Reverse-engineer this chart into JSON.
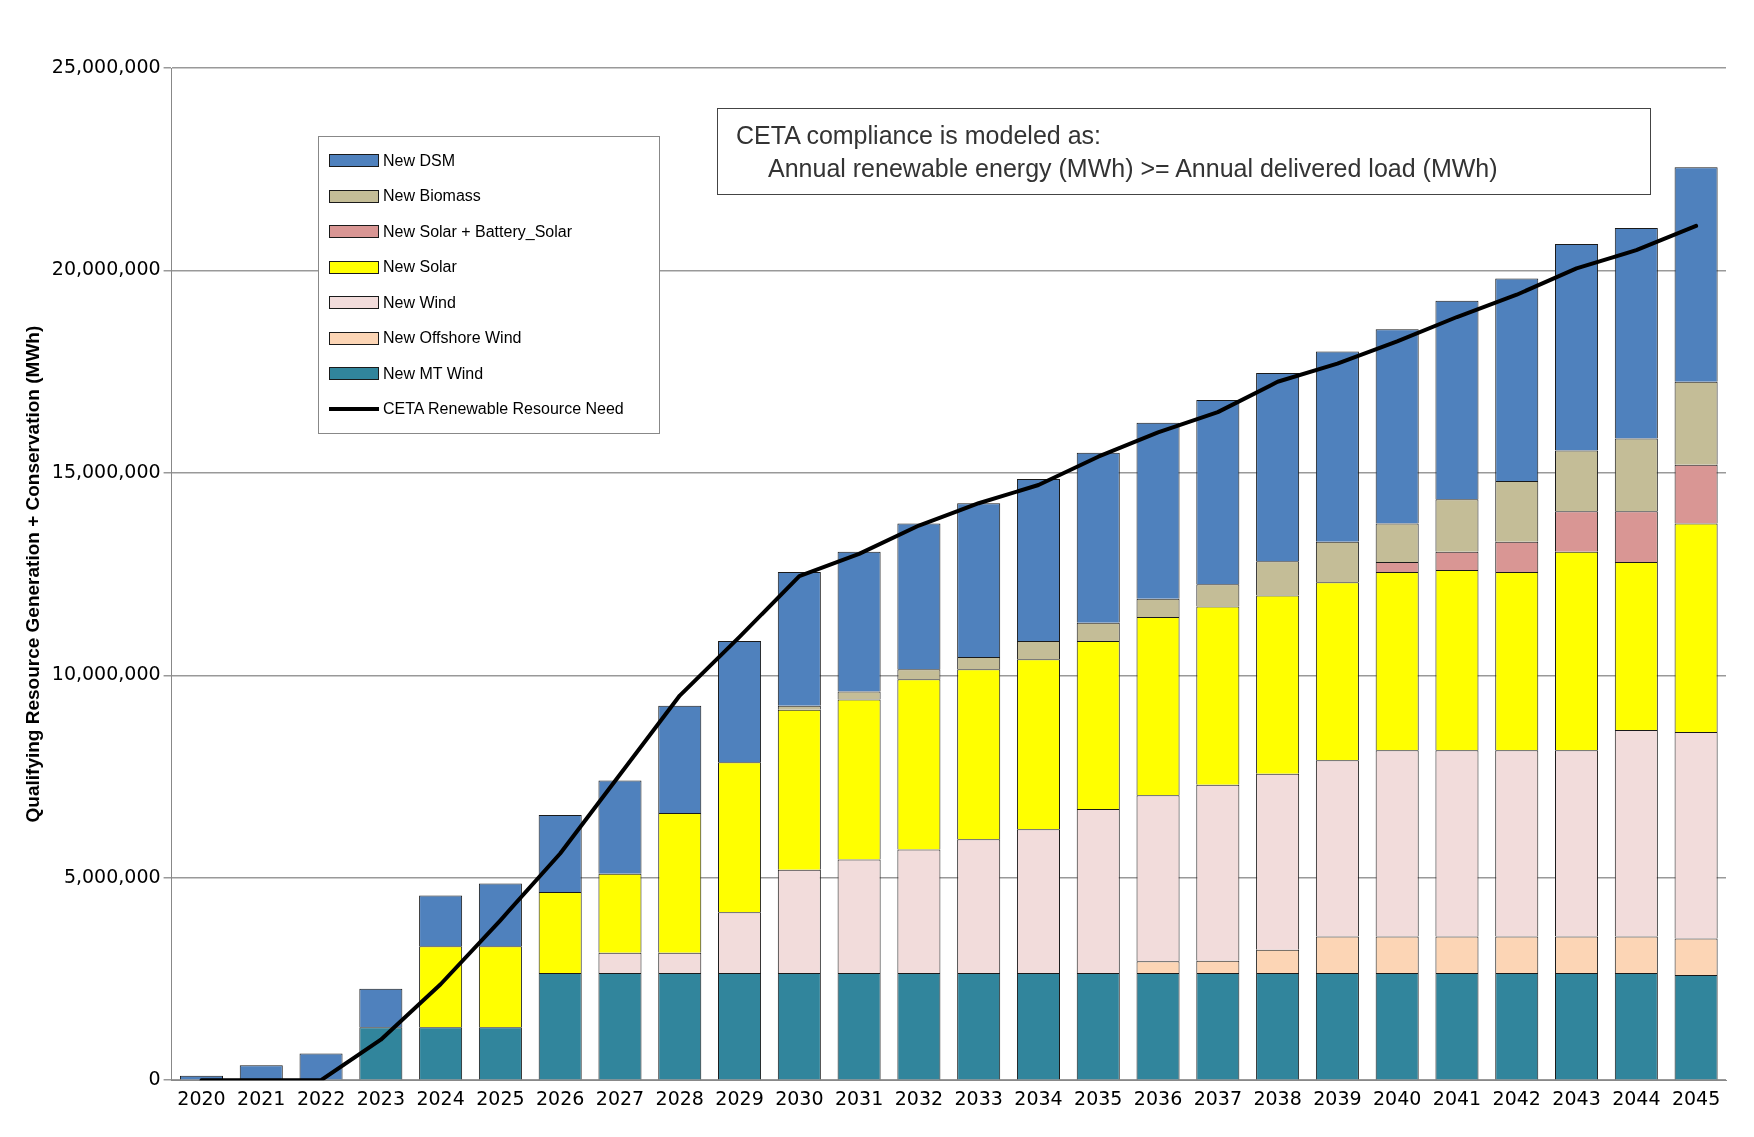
{
  "chart_data": {
    "type": "bar",
    "stacked": true,
    "ylabel": "Qualifying Resource Generation + Conservation (MWh)",
    "categories": [
      "2020",
      "2021",
      "2022",
      "2023",
      "2024",
      "2025",
      "2026",
      "2027",
      "2028",
      "2029",
      "2030",
      "2031",
      "2032",
      "2033",
      "2034",
      "2035",
      "2036",
      "2037",
      "2038",
      "2039",
      "2040",
      "2041",
      "2042",
      "2043",
      "2044",
      "2045"
    ],
    "series": [
      {
        "name": "New MT Wind",
        "color": "#31859c",
        "values": [
          0,
          0,
          0,
          1310000,
          1310000,
          1310000,
          2650000,
          2650000,
          2650000,
          2650000,
          2650000,
          2650000,
          2650000,
          2650000,
          2650000,
          2650000,
          2650000,
          2650000,
          2650000,
          2650000,
          2650000,
          2650000,
          2650000,
          2650000,
          2650000,
          2600000
        ]
      },
      {
        "name": "New Offshore Wind",
        "color": "#fcd5b5",
        "values": [
          0,
          0,
          0,
          0,
          0,
          0,
          0,
          0,
          0,
          0,
          0,
          0,
          0,
          0,
          0,
          0,
          290000,
          300000,
          570000,
          900000,
          900000,
          900000,
          900000,
          900000,
          900000,
          900000
        ]
      },
      {
        "name": "New Wind",
        "color": "#f2dcdb",
        "values": [
          0,
          0,
          0,
          0,
          0,
          0,
          0,
          500000,
          500000,
          1500000,
          2550000,
          2800000,
          3050000,
          3300000,
          3550000,
          4050000,
          4100000,
          4350000,
          4350000,
          4350000,
          4600000,
          4600000,
          4600000,
          4600000,
          5100000,
          5100000
        ]
      },
      {
        "name": "New Solar",
        "color": "#ffff00",
        "values": [
          0,
          0,
          0,
          0,
          2000000,
          2000000,
          2000000,
          1950000,
          3450000,
          3700000,
          3950000,
          3950000,
          4200000,
          4200000,
          4200000,
          4150000,
          4400000,
          4400000,
          4400000,
          4400000,
          4400000,
          4450000,
          4400000,
          4900000,
          4150000,
          5150000
        ]
      },
      {
        "name": "New Solar + Battery_Solar",
        "color": "#d99694",
        "values": [
          0,
          0,
          0,
          0,
          0,
          0,
          0,
          0,
          0,
          0,
          0,
          0,
          0,
          0,
          0,
          0,
          0,
          0,
          0,
          0,
          250000,
          450000,
          750000,
          1000000,
          1250000,
          1450000
        ]
      },
      {
        "name": "New Biomass",
        "color": "#c4bd97",
        "values": [
          0,
          0,
          0,
          0,
          0,
          0,
          0,
          0,
          0,
          0,
          100000,
          200000,
          250000,
          300000,
          450000,
          450000,
          450000,
          550000,
          850000,
          1000000,
          950000,
          1300000,
          1500000,
          1500000,
          1800000,
          2050000
        ]
      },
      {
        "name": "New DSM",
        "color": "#4f81bd",
        "values": [
          110000,
          370000,
          660000,
          950000,
          1250000,
          1550000,
          1900000,
          2300000,
          2650000,
          3000000,
          3300000,
          3450000,
          3600000,
          3800000,
          4000000,
          4200000,
          4350000,
          4550000,
          4650000,
          4700000,
          4800000,
          4900000,
          5000000,
          5100000,
          5200000,
          5300000
        ]
      },
      {
        "name": "CETA Renewable Resource Need",
        "type": "line",
        "color": "#000000",
        "values": [
          0,
          0,
          0,
          1000000,
          2370000,
          3950000,
          5600000,
          7550000,
          9500000,
          10950000,
          12450000,
          13000000,
          13700000,
          14250000,
          14700000,
          15400000,
          16000000,
          16500000,
          17250000,
          17700000,
          18250000,
          18850000,
          19400000,
          20050000,
          20500000,
          21100000
        ]
      }
    ],
    "ylim": [
      0,
      25000000
    ],
    "yticks": [
      0,
      {
        "value": 5000000,
        "label": "5,000,000"
      },
      {
        "value": 10000000,
        "label": "10,000,000"
      },
      {
        "value": 15000000,
        "label": "15,000,000"
      },
      {
        "value": 20000000,
        "label": "20,000,000"
      },
      {
        "value": 25000000,
        "label": "25,000,000"
      }
    ],
    "grid": "y",
    "legend": "top left",
    "annotations": [
      "CETA compliance is modeled as:",
      "Annual renewable energy (MWh) >= Annual delivered load (MWh)"
    ]
  }
}
